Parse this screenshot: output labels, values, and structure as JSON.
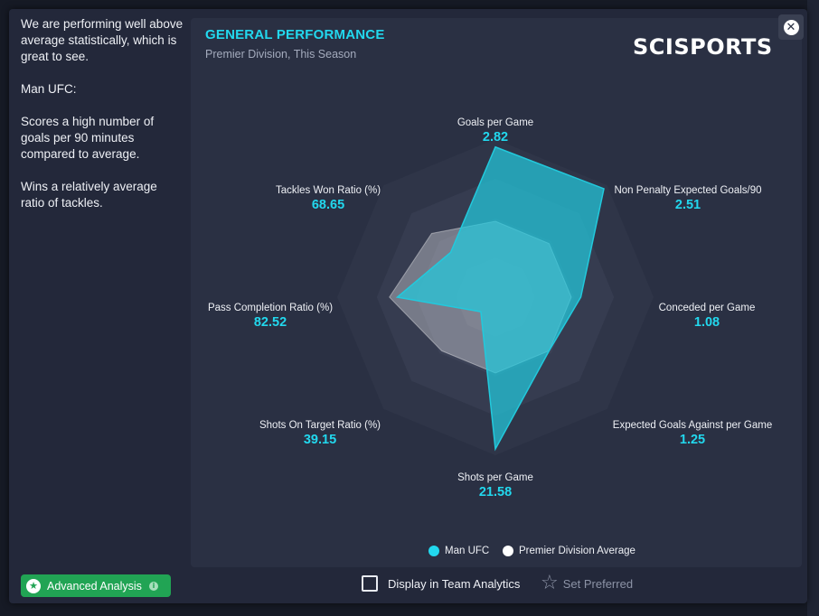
{
  "sidebar": {
    "paragraphs": [
      "We are performing well above average statistically, which is great to see.",
      "Man UFC:",
      "Scores a high number of goals per 90 minutes compared to average.",
      "Wins a relatively average ratio of tackles."
    ]
  },
  "panel": {
    "title": "GENERAL PERFORMANCE",
    "subtitle": "Premier Division, This Season",
    "logo_text": "SCISPORTS",
    "close_icon": "close-icon"
  },
  "chart_data": {
    "type": "radar",
    "axes": [
      {
        "name": "Goals per Game",
        "value": "2.82"
      },
      {
        "name": "Non Penalty Expected Goals/90",
        "value": "2.51"
      },
      {
        "name": "Conceded per Game",
        "value": "1.08"
      },
      {
        "name": "Expected Goals Against per Game",
        "value": "1.25"
      },
      {
        "name": "Shots per Game",
        "value": "21.58"
      },
      {
        "name": "Shots On Target Ratio (%)",
        "value": "39.15"
      },
      {
        "name": "Pass Completion Ratio (%)",
        "value": "82.52"
      },
      {
        "name": "Tackles Won Ratio (%)",
        "value": "68.65"
      }
    ],
    "series": [
      {
        "name": "Man UFC",
        "color": "#22c9dc",
        "radius_fraction": [
          0.95,
          0.97,
          0.54,
          0.48,
          0.96,
          0.13,
          0.62,
          0.4
        ]
      },
      {
        "name": "Premier Division Average",
        "color": "#ffffff",
        "radius_fraction": [
          0.48,
          0.48,
          0.48,
          0.48,
          0.48,
          0.48,
          0.67,
          0.57
        ]
      }
    ],
    "rings": 4
  },
  "legend": {
    "team": "Man UFC",
    "average": "Premier Division Average"
  },
  "footer": {
    "advanced_label": "Advanced Analysis",
    "checkbox_label": "Display in Team Analytics",
    "preferred_label": "Set Preferred"
  },
  "colors": {
    "accent": "#22d8ee",
    "green": "#21a454"
  }
}
